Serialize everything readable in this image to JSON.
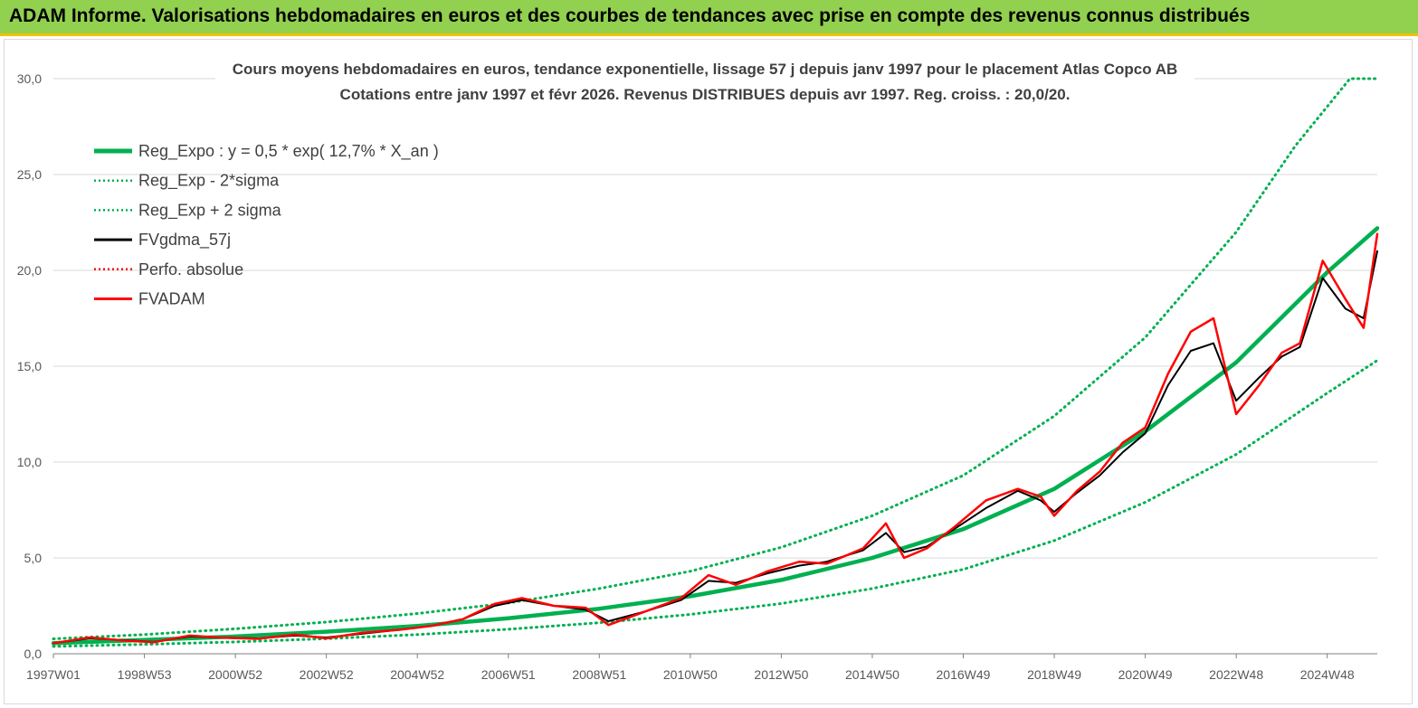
{
  "header": {
    "title": "ADAM Informe. Valorisations hebdomadaires en euros et des courbes de tendances avec prise en compte des revenus connus distribués"
  },
  "chart_data": {
    "type": "line",
    "title": "Cours moyens hebdomadaires en euros, tendance exponentielle, lissage 57 j depuis janv 1997 pour le placement Atlas Copco AB",
    "subtitle": "Cotations entre janv 1997 et févr 2026. Revenus DISTRIBUES depuis avr 1997. Reg. croiss. : 20,0/20.",
    "xlabel": "",
    "ylabel": "",
    "x_range": [
      1997.0,
      2026.1
    ],
    "ylim": [
      0,
      30
    ],
    "y_ticks": [
      "0,0",
      "5,0",
      "10,0",
      "15,0",
      "20,0",
      "25,0",
      "30,0"
    ],
    "y_tick_values": [
      0,
      5,
      10,
      15,
      20,
      25,
      30
    ],
    "x_ticks": [
      {
        "label": "1997W01",
        "x": 1997.0
      },
      {
        "label": "1998W53",
        "x": 1999.0
      },
      {
        "label": "2000W52",
        "x": 2001.0
      },
      {
        "label": "2002W52",
        "x": 2003.0
      },
      {
        "label": "2004W52",
        "x": 2005.0
      },
      {
        "label": "2006W51",
        "x": 2007.0
      },
      {
        "label": "2008W51",
        "x": 2009.0
      },
      {
        "label": "2010W50",
        "x": 2011.0
      },
      {
        "label": "2012W50",
        "x": 2013.0
      },
      {
        "label": "2014W50",
        "x": 2015.0
      },
      {
        "label": "2016W49",
        "x": 2017.0
      },
      {
        "label": "2018W49",
        "x": 2019.0
      },
      {
        "label": "2020W49",
        "x": 2021.0
      },
      {
        "label": "2022W48",
        "x": 2023.0
      },
      {
        "label": "2024W48",
        "x": 2025.0
      }
    ],
    "grid": "horizontal",
    "legend_position": "top-left",
    "series": [
      {
        "name": "Reg_Expo : y = 0,5 * exp( 12,7% *  X_an )",
        "color": "#00b050",
        "style": "solid",
        "x": [
          1997.0,
          1999.0,
          2001.0,
          2003.0,
          2005.0,
          2007.0,
          2009.0,
          2011.0,
          2013.0,
          2015.0,
          2017.0,
          2019.0,
          2021.0,
          2023.0,
          2025.0,
          2026.1
        ],
        "values": [
          0.55,
          0.72,
          0.9,
          1.15,
          1.45,
          1.85,
          2.35,
          3.0,
          3.85,
          5.0,
          6.5,
          8.6,
          11.6,
          15.2,
          19.9,
          22.2
        ]
      },
      {
        "name": "Reg_Exp - 2*sigma",
        "color": "#00b050",
        "style": "dotted",
        "x": [
          1997.0,
          1999.0,
          2001.0,
          2003.0,
          2005.0,
          2007.0,
          2009.0,
          2011.0,
          2013.0,
          2015.0,
          2017.0,
          2019.0,
          2021.0,
          2023.0,
          2025.0,
          2026.1
        ],
        "values": [
          0.38,
          0.49,
          0.62,
          0.79,
          1.0,
          1.28,
          1.62,
          2.05,
          2.62,
          3.4,
          4.4,
          5.9,
          7.9,
          10.4,
          13.6,
          15.3
        ]
      },
      {
        "name": "Reg_Exp + 2 sigma",
        "color": "#00b050",
        "style": "dotted",
        "x": [
          1997.0,
          1999.0,
          2001.0,
          2003.0,
          2005.0,
          2007.0,
          2009.0,
          2011.0,
          2013.0,
          2015.0,
          2017.0,
          2019.0,
          2021.0,
          2023.0,
          2024.3,
          2025.5,
          2026.1
        ],
        "values": [
          0.78,
          1.0,
          1.3,
          1.65,
          2.1,
          2.65,
          3.4,
          4.3,
          5.55,
          7.2,
          9.3,
          12.4,
          16.5,
          22.0,
          26.5,
          30.0,
          30.0
        ]
      },
      {
        "name": "FVgdma_57j",
        "color": "#000000",
        "style": "solid",
        "x": [
          1997.0,
          1997.8,
          1998.5,
          1999.2,
          2000.0,
          2000.6,
          2001.5,
          2002.3,
          2003.0,
          2003.8,
          2004.6,
          2005.3,
          2006.0,
          2006.7,
          2007.3,
          2008.0,
          2008.7,
          2009.2,
          2010.0,
          2010.8,
          2011.4,
          2012.0,
          2012.7,
          2013.4,
          2014.0,
          2014.8,
          2015.3,
          2015.7,
          2016.2,
          2016.8,
          2017.5,
          2018.2,
          2018.7,
          2019.0,
          2019.5,
          2020.0,
          2020.5,
          2021.0,
          2021.5,
          2022.0,
          2022.5,
          2023.0,
          2023.5,
          2024.0,
          2024.4,
          2024.9,
          2025.4,
          2025.8,
          2026.1
        ],
        "values": [
          0.55,
          0.8,
          0.72,
          0.62,
          0.9,
          0.85,
          0.8,
          0.95,
          0.85,
          1.05,
          1.25,
          1.45,
          1.8,
          2.5,
          2.8,
          2.5,
          2.3,
          1.7,
          2.2,
          2.8,
          3.8,
          3.7,
          4.2,
          4.6,
          4.8,
          5.4,
          6.3,
          5.3,
          5.6,
          6.5,
          7.6,
          8.5,
          8.0,
          7.4,
          8.4,
          9.3,
          10.5,
          11.5,
          14.0,
          15.8,
          16.2,
          13.2,
          14.4,
          15.5,
          16.0,
          19.6,
          18.0,
          17.5,
          21.0
        ]
      },
      {
        "name": "Perfo. absolue",
        "color": "#ff0000",
        "style": "dotted",
        "x": [
          1997.0,
          1997.8,
          1998.5,
          1999.2,
          2000.0,
          2000.6,
          2001.5,
          2002.3,
          2003.0,
          2003.8,
          2004.6,
          2005.3,
          2006.0,
          2006.7,
          2007.3,
          2008.0,
          2008.7,
          2009.2,
          2010.0,
          2010.8,
          2011.4,
          2012.0,
          2012.7,
          2013.4,
          2014.0,
          2014.8,
          2015.3,
          2015.7,
          2016.2,
          2016.8,
          2017.5,
          2018.2,
          2018.7,
          2019.0,
          2019.5,
          2020.0,
          2020.5,
          2021.0,
          2021.5,
          2022.0,
          2022.5,
          2023.0,
          2023.5,
          2024.0,
          2024.4,
          2024.9,
          2025.4,
          2025.8,
          2026.1
        ],
        "values": [
          0.55,
          0.85,
          0.7,
          0.6,
          0.95,
          0.85,
          0.78,
          1.0,
          0.8,
          1.1,
          1.25,
          1.45,
          1.8,
          2.6,
          2.9,
          2.5,
          2.4,
          1.5,
          2.2,
          2.9,
          4.1,
          3.6,
          4.3,
          4.8,
          4.7,
          5.5,
          6.8,
          5.0,
          5.5,
          6.6,
          8.0,
          8.6,
          8.2,
          7.2,
          8.5,
          9.5,
          11.0,
          11.8,
          14.6,
          16.8,
          17.5,
          12.5,
          14.0,
          15.7,
          16.2,
          20.5,
          18.5,
          17.0,
          21.9
        ]
      },
      {
        "name": "FVADAM",
        "color": "#ff0000",
        "style": "solid",
        "x": [
          1997.0,
          1997.8,
          1998.5,
          1999.2,
          2000.0,
          2000.6,
          2001.5,
          2002.3,
          2003.0,
          2003.8,
          2004.6,
          2005.3,
          2006.0,
          2006.7,
          2007.3,
          2008.0,
          2008.7,
          2009.2,
          2010.0,
          2010.8,
          2011.4,
          2012.0,
          2012.7,
          2013.4,
          2014.0,
          2014.8,
          2015.3,
          2015.7,
          2016.2,
          2016.8,
          2017.5,
          2018.2,
          2018.7,
          2019.0,
          2019.5,
          2020.0,
          2020.5,
          2021.0,
          2021.5,
          2022.0,
          2022.5,
          2023.0,
          2023.5,
          2024.0,
          2024.4,
          2024.9,
          2025.4,
          2025.8,
          2026.1
        ],
        "values": [
          0.55,
          0.85,
          0.7,
          0.6,
          0.95,
          0.85,
          0.78,
          1.0,
          0.8,
          1.1,
          1.25,
          1.45,
          1.8,
          2.6,
          2.9,
          2.5,
          2.4,
          1.5,
          2.2,
          2.9,
          4.1,
          3.6,
          4.3,
          4.8,
          4.7,
          5.5,
          6.8,
          5.0,
          5.5,
          6.6,
          8.0,
          8.6,
          8.2,
          7.2,
          8.5,
          9.5,
          11.0,
          11.8,
          14.6,
          16.8,
          17.5,
          12.5,
          14.0,
          15.7,
          16.2,
          20.5,
          18.5,
          17.0,
          21.9
        ]
      }
    ]
  }
}
